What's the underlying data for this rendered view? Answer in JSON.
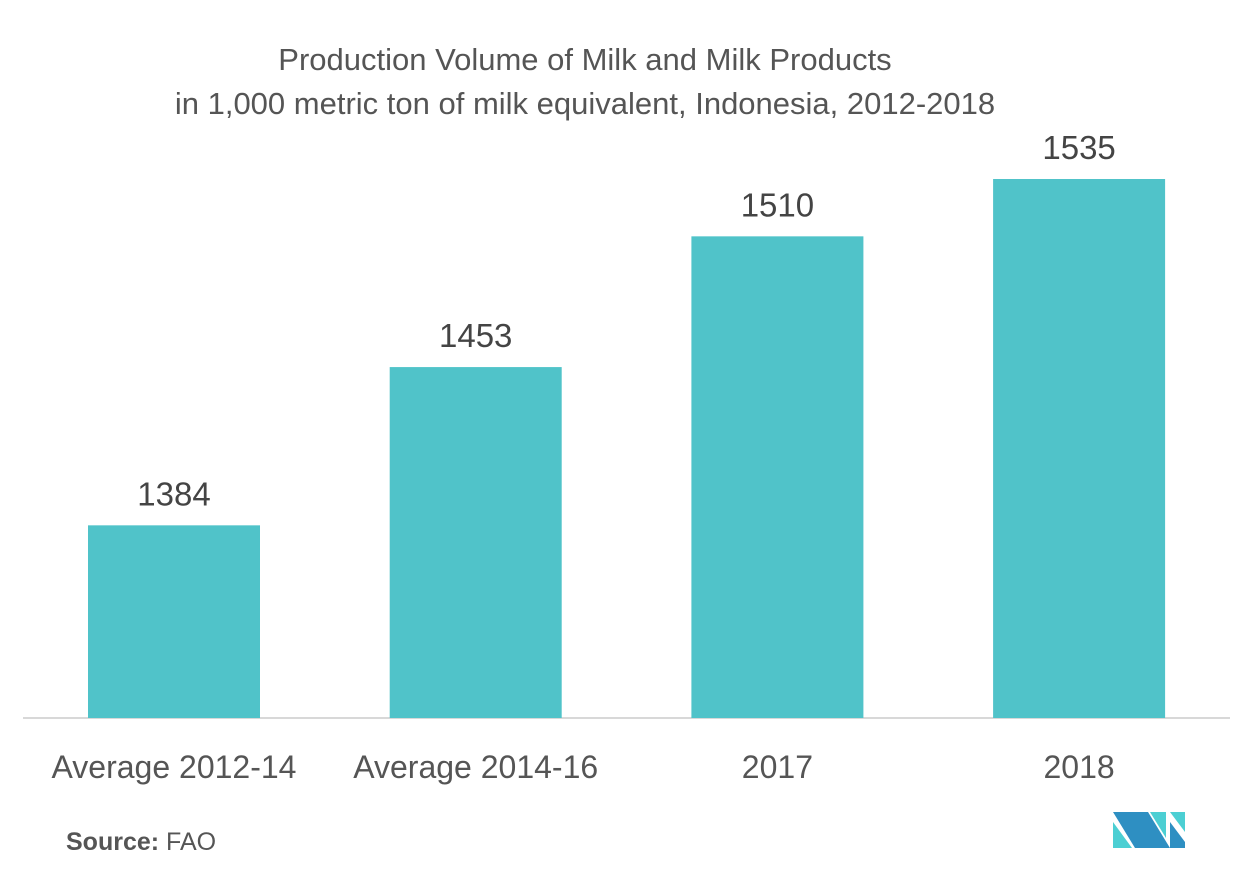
{
  "chart_data": {
    "type": "bar",
    "title": "Production Volume of Milk and Milk Products",
    "subtitle": "in 1,000 metric ton of milk equivalent, Indonesia, 2012-2018",
    "categories": [
      "Average 2012-14",
      "Average 2014-16",
      "2017",
      "2018"
    ],
    "values": [
      1384,
      1453,
      1510,
      1535
    ],
    "data_labels": [
      "1384",
      "1453",
      "1510",
      "1535"
    ],
    "xlabel": "",
    "ylabel": "",
    "ylim": [
      1300,
      1535
    ],
    "grid": false,
    "bar_color": "#50c3c9"
  },
  "source": {
    "label": "Source:",
    "value": "FAO"
  }
}
